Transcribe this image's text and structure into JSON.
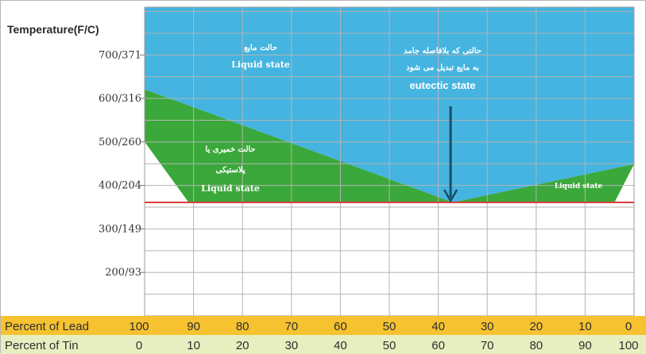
{
  "chart_data": {
    "type": "area",
    "ylabel": "Temperature(F/C)",
    "y_ticks": [
      "700/371",
      "600/316",
      "500/260",
      "400/204",
      "300/149",
      "200/93"
    ],
    "y_tick_values_f": [
      700,
      600,
      500,
      400,
      300,
      200
    ],
    "ylim_f": [
      100,
      810
    ],
    "x_rows": [
      {
        "label": "Percent of Lead",
        "values": [
          "100",
          "90",
          "80",
          "70",
          "60",
          "50",
          "40",
          "30",
          "20",
          "10",
          "0"
        ]
      },
      {
        "label": "Percent of Tin",
        "values": [
          "0",
          "10",
          "20",
          "30",
          "40",
          "50",
          "60",
          "70",
          "80",
          "90",
          "100"
        ]
      }
    ],
    "xlim_tin": [
      0,
      100
    ],
    "eutectic_temp_f": 361,
    "liquidus_f": [
      {
        "tin": 0,
        "temp": 621
      },
      {
        "tin": 63,
        "temp": 361
      },
      {
        "tin": 100,
        "temp": 449
      }
    ],
    "solidus_f": [
      {
        "tin": 0,
        "temp": 500
      },
      {
        "tin": 9,
        "temp": 361
      },
      {
        "tin": 96,
        "temp": 361
      },
      {
        "tin": 100,
        "temp": 449
      }
    ],
    "annotations": {
      "liquid_fa": "حالت مایع",
      "liquid_en": "Liquid state",
      "eutectic_fa_1": "حالتی که بلافاصله جامد",
      "eutectic_fa_2": "به مایع تبدیل می شود",
      "eutectic_en": "eutectic state",
      "plastic_fa_1": "حالت خمیری یا",
      "plastic_fa_2": "پلاستیکی",
      "plastic_en": "Liquid state",
      "right_en": "Liquid state"
    },
    "colors": {
      "liquid": "#45b4e0",
      "plastic": "#3aa83a",
      "solid": "#ffffff",
      "eutectic_line": "#dc3c3c",
      "grid": "#b4b4b4",
      "arrow": "#1a4d63",
      "lead_row": "#f6c230",
      "tin_row": "#e7efc0"
    }
  }
}
